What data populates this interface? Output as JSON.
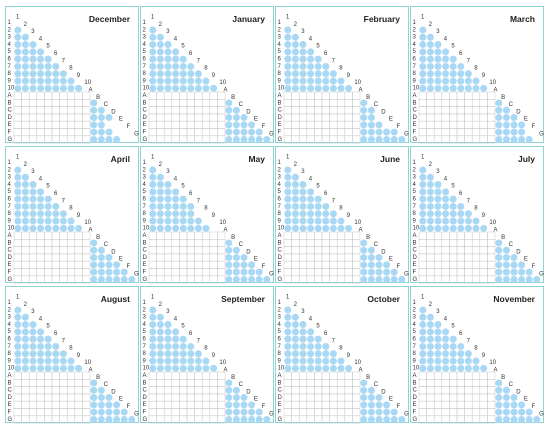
{
  "rows": [
    "1",
    "2",
    "3",
    "4",
    "5",
    "6",
    "7",
    "8",
    "9",
    "10",
    "A",
    "B",
    "C",
    "D",
    "E",
    "F",
    "G"
  ],
  "colors": {
    "dot": "#a9d8f5",
    "border": "#8fd3d3",
    "grid": "#c9c9c9"
  },
  "months": [
    {
      "name": "December",
      "upper": [
        [],
        [
          0
        ],
        [
          0,
          1
        ],
        [
          0,
          1,
          2
        ],
        [
          0,
          1,
          2,
          3
        ],
        [
          0,
          1,
          2,
          3,
          4
        ],
        [
          0,
          1,
          2,
          3,
          4,
          5
        ],
        [
          0,
          1,
          2,
          3,
          4,
          5,
          6
        ],
        [
          0,
          1,
          2,
          3,
          4,
          5,
          6,
          7
        ],
        [
          0,
          1,
          2,
          3,
          4,
          5,
          6,
          7,
          8
        ]
      ],
      "lower": [
        [
          0
        ],
        [
          0,
          1
        ],
        [
          0,
          1,
          2
        ],
        [
          0,
          1
        ],
        [
          0,
          1,
          2
        ],
        [
          0,
          1,
          2,
          3
        ]
      ]
    },
    {
      "name": "January",
      "upper": [
        [],
        [
          0
        ],
        [
          0,
          1
        ],
        [
          0,
          1,
          2
        ],
        [
          0,
          1,
          2,
          3
        ],
        [
          0,
          1,
          2,
          3,
          4
        ],
        [
          0,
          1,
          2,
          3,
          4,
          5
        ],
        [
          0,
          1,
          2,
          3,
          4,
          5,
          6
        ],
        [
          0,
          1,
          2,
          3,
          4,
          5,
          6,
          7
        ],
        [
          0,
          1,
          2,
          3,
          4,
          5,
          6,
          7,
          8
        ]
      ],
      "lower": [
        [
          0
        ],
        [
          0,
          1
        ],
        [
          0,
          1,
          2
        ],
        [
          0,
          1,
          2,
          3
        ],
        [
          0,
          1,
          2,
          3,
          4
        ],
        [
          0,
          1,
          2,
          3,
          4,
          5
        ]
      ]
    },
    {
      "name": "February",
      "upper": [
        [],
        [
          0
        ],
        [
          0,
          1
        ],
        [
          0,
          1,
          2
        ],
        [
          0,
          1,
          2,
          3
        ],
        [
          0,
          1,
          2,
          3,
          4
        ],
        [
          0,
          1,
          2,
          3,
          4,
          5
        ],
        [
          0,
          1,
          2,
          3,
          4,
          5,
          6
        ],
        [
          0,
          1,
          2,
          3,
          4,
          5,
          6,
          7
        ],
        [
          0,
          1,
          2,
          3,
          4,
          5,
          6,
          7,
          8
        ]
      ],
      "lower": [
        [
          0
        ],
        [
          0,
          1
        ],
        [
          0,
          1
        ],
        [
          0,
          1,
          2
        ],
        [
          0,
          1,
          2,
          3,
          4
        ],
        [
          0,
          1,
          2,
          3,
          4,
          5
        ]
      ]
    },
    {
      "name": "March",
      "upper": [
        [],
        [
          0
        ],
        [
          0,
          1
        ],
        [
          0,
          1,
          2
        ],
        [
          0,
          1,
          2,
          3
        ],
        [
          0,
          1,
          2,
          3,
          4
        ],
        [
          0,
          1,
          2,
          3,
          4,
          5
        ],
        [
          0,
          1,
          2,
          3,
          4,
          5,
          6
        ],
        [
          0,
          1,
          2,
          3,
          4,
          5,
          6,
          7
        ],
        [
          0,
          1,
          2,
          3,
          4,
          5,
          6,
          7,
          8
        ]
      ],
      "lower": [
        [
          0
        ],
        [
          0,
          1
        ],
        [
          0,
          1,
          2
        ],
        [
          0,
          1,
          2,
          3
        ],
        [
          0,
          1,
          2,
          3
        ],
        [
          0,
          1,
          2,
          3,
          4
        ]
      ]
    },
    {
      "name": "April",
      "upper": [
        [],
        [
          0
        ],
        [
          0,
          1
        ],
        [
          0,
          1,
          2
        ],
        [
          0,
          1,
          2,
          3
        ],
        [
          0,
          1,
          2,
          3,
          4
        ],
        [
          0,
          1,
          2,
          3,
          4,
          5
        ],
        [
          0,
          1,
          2,
          3,
          4,
          5,
          6
        ],
        [
          0,
          1,
          2,
          3,
          4,
          5,
          6,
          7
        ],
        [
          0,
          1,
          2,
          3,
          4,
          5,
          6,
          7,
          8
        ]
      ],
      "lower": [
        [
          0
        ],
        [
          0,
          1
        ],
        [
          0,
          1,
          2
        ],
        [
          0,
          1,
          2,
          3
        ],
        [
          0,
          1,
          2,
          3,
          4
        ],
        [
          0,
          1,
          2,
          3,
          4,
          5
        ]
      ]
    },
    {
      "name": "May",
      "upper": [
        [],
        [
          0
        ],
        [
          0,
          1
        ],
        [
          0,
          1,
          2
        ],
        [
          0,
          1,
          2,
          3
        ],
        [
          0,
          1,
          2,
          3,
          4
        ],
        [
          0,
          1,
          2,
          3,
          4,
          5
        ],
        [
          0,
          1,
          2,
          3,
          4,
          5
        ],
        [
          0,
          1,
          2,
          3,
          4,
          5,
          6
        ],
        [
          0,
          1,
          2,
          3,
          4,
          5,
          6,
          7
        ]
      ],
      "lower": [
        [
          0
        ],
        [
          0,
          1
        ],
        [
          0,
          1,
          2
        ],
        [
          0,
          1,
          2,
          3
        ],
        [
          0,
          1,
          2,
          3,
          4
        ],
        [
          0,
          1,
          2,
          3,
          4,
          5
        ]
      ]
    },
    {
      "name": "June",
      "upper": [
        [],
        [
          0
        ],
        [
          0,
          1
        ],
        [
          0,
          1,
          2
        ],
        [
          0,
          1,
          2,
          3
        ],
        [
          0,
          1,
          2,
          3,
          4
        ],
        [
          0,
          1,
          2,
          3,
          4,
          5
        ],
        [
          0,
          1,
          2,
          3,
          4,
          5,
          6
        ],
        [
          0,
          1,
          2,
          3,
          4,
          5,
          6,
          7
        ],
        [
          0,
          1,
          2,
          3,
          4,
          5,
          6,
          7,
          8
        ]
      ],
      "lower": [
        [
          0
        ],
        [
          0,
          1
        ],
        [
          0,
          1,
          2
        ],
        [
          0,
          1,
          2,
          3
        ],
        [
          0,
          1,
          2,
          3,
          4
        ],
        [
          0,
          1,
          2,
          3,
          4,
          5
        ]
      ]
    },
    {
      "name": "July",
      "upper": [
        [],
        [
          0
        ],
        [
          0,
          1
        ],
        [
          0,
          1,
          2
        ],
        [
          0,
          1,
          2,
          3
        ],
        [
          0,
          1,
          2,
          3,
          4
        ],
        [
          0,
          1,
          2,
          3,
          4,
          5
        ],
        [
          0,
          1,
          2,
          3,
          4,
          5,
          6
        ],
        [
          0,
          1,
          2,
          3,
          4,
          5,
          6,
          7
        ],
        [
          0,
          1,
          2,
          3,
          4,
          5,
          6,
          7,
          8
        ]
      ],
      "lower": [
        [
          0
        ],
        [
          0,
          1
        ],
        [
          0,
          1,
          2
        ],
        [
          0,
          1,
          2,
          3
        ],
        [
          0,
          1,
          2,
          3,
          4
        ],
        [
          0,
          1,
          2,
          3,
          4,
          5
        ]
      ]
    },
    {
      "name": "August",
      "upper": [
        [],
        [
          0
        ],
        [
          0,
          1
        ],
        [
          0,
          1,
          2
        ],
        [
          0,
          1,
          2,
          3
        ],
        [
          0,
          1,
          2,
          3,
          4
        ],
        [
          0,
          1,
          2,
          3,
          4,
          5
        ],
        [
          0,
          1,
          2,
          3,
          4,
          5,
          6
        ],
        [
          0,
          1,
          2,
          3,
          4,
          5,
          6,
          7
        ],
        [
          0,
          1,
          2,
          3,
          4,
          5,
          6,
          7,
          8
        ]
      ],
      "lower": [
        [
          0
        ],
        [
          0,
          1
        ],
        [
          0,
          1,
          2
        ],
        [
          0,
          1,
          2,
          3
        ],
        [
          0,
          1,
          2,
          3,
          4
        ],
        [
          0,
          1,
          2,
          3,
          4,
          5
        ]
      ]
    },
    {
      "name": "September",
      "upper": [
        [],
        [
          0
        ],
        [
          0,
          1
        ],
        [
          0,
          1,
          2
        ],
        [
          0,
          1,
          2,
          3
        ],
        [
          0,
          1,
          2,
          3,
          4
        ],
        [
          0,
          1,
          2,
          3,
          4,
          5
        ],
        [
          0,
          1,
          2,
          3,
          4,
          5,
          6
        ],
        [
          0,
          1,
          2,
          3,
          4,
          5,
          6,
          7
        ],
        [
          0,
          1,
          2,
          3,
          4,
          5,
          6,
          7,
          8
        ]
      ],
      "lower": [
        [
          0
        ],
        [
          0,
          1
        ],
        [
          0,
          1,
          2
        ],
        [
          0,
          1,
          2,
          3
        ],
        [
          0,
          1,
          2,
          3,
          4
        ],
        [
          0,
          1,
          2,
          3,
          4,
          5
        ]
      ]
    },
    {
      "name": "October",
      "upper": [
        [],
        [
          0
        ],
        [
          0,
          1
        ],
        [
          0,
          1,
          2
        ],
        [
          0,
          1,
          2,
          3
        ],
        [
          0,
          1,
          2,
          3,
          4
        ],
        [
          0,
          1,
          2,
          3,
          4,
          5
        ],
        [
          0,
          1,
          2,
          3,
          4,
          5,
          6
        ],
        [
          0,
          1,
          2,
          3,
          4,
          5,
          6,
          7
        ],
        [
          0,
          1,
          2,
          3,
          4,
          5,
          6,
          7,
          8
        ]
      ],
      "lower": [
        [
          0
        ],
        [
          0,
          1
        ],
        [
          0,
          1,
          2
        ],
        [
          0,
          1,
          2,
          3
        ],
        [
          0,
          1,
          2,
          3,
          4
        ],
        [
          0,
          1,
          2,
          3,
          4,
          5
        ]
      ]
    },
    {
      "name": "November",
      "upper": [
        [],
        [
          0
        ],
        [
          0,
          1
        ],
        [
          0,
          1,
          2
        ],
        [
          0,
          1,
          2,
          3
        ],
        [
          0,
          1,
          2,
          3,
          4
        ],
        [
          0,
          1,
          2,
          3,
          4,
          5
        ],
        [
          0,
          1,
          2,
          3,
          4,
          5,
          6
        ],
        [
          0,
          1,
          2,
          3,
          4,
          5,
          6,
          7
        ],
        [
          0,
          1,
          2,
          3,
          4,
          5,
          6,
          7,
          8
        ]
      ],
      "lower": [
        [
          0
        ],
        [
          0,
          1
        ],
        [
          0,
          1,
          2
        ],
        [
          0,
          1,
          2,
          3
        ],
        [
          0,
          1,
          2,
          3,
          4
        ],
        [
          0,
          1,
          2,
          3,
          4,
          5
        ]
      ]
    }
  ]
}
